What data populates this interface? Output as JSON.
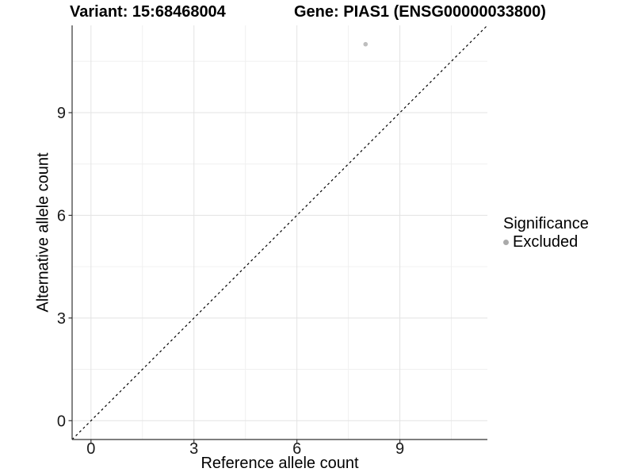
{
  "titles": {
    "variant": "Variant: 15:68468004",
    "gene": "Gene: PIAS1 (ENSG00000033800)"
  },
  "chart_data": {
    "type": "scatter",
    "title_left": "Variant: 15:68468004",
    "title_right": "Gene: PIAS1 (ENSG00000033800)",
    "xlabel": "Reference allele count",
    "ylabel": "Alternative allele count",
    "xlim": [
      -0.55,
      11.55
    ],
    "ylim": [
      -0.55,
      11.55
    ],
    "x_ticks": [
      0,
      3,
      6,
      9
    ],
    "y_ticks": [
      0,
      3,
      6,
      9
    ],
    "x_minor_ticks": [
      1.5,
      4.5,
      7.5,
      10.5
    ],
    "y_minor_ticks": [
      1.5,
      4.5,
      7.5,
      10.5
    ],
    "grid": true,
    "series": [
      {
        "name": "Excluded",
        "points": [
          {
            "x": 8,
            "y": 11
          }
        ]
      }
    ],
    "reference_line": {
      "type": "identity y=x",
      "style": "dashed",
      "x1": -0.55,
      "y1": -0.55,
      "x2": 11.55,
      "y2": 11.55
    },
    "legend": {
      "position": "right",
      "title": "Significance",
      "entries": [
        {
          "label": "Excluded",
          "color": "#aaaaaa"
        }
      ]
    },
    "colors": {
      "point": "#bebebe",
      "grid_major": "#e3e3e3",
      "grid_minor": "#f0f0f0",
      "axis_line": "#333333",
      "tick_text": "#1a1a1a",
      "diagonal": "#000000"
    }
  }
}
